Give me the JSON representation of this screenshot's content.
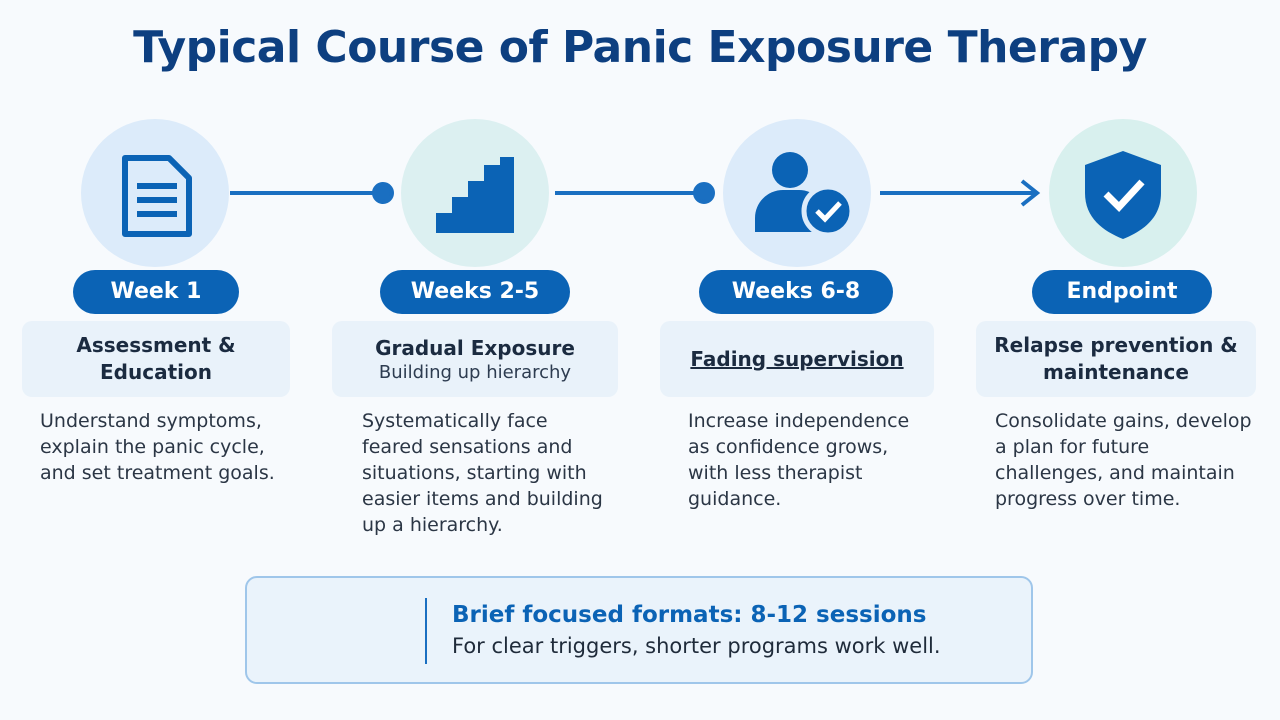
{
  "title": "Typical Course of Panic Exposure Therapy",
  "steps": [
    {
      "label": "Week 1",
      "heading": "Assessment & Education",
      "description": "Understand symptoms, explain the panic cycle, and set treatment goals."
    },
    {
      "label": "Weeks 2-5",
      "heading": "Gradual Exposure",
      "subheading": "Building up hierarchy",
      "description": "Systematically face feared sensations and situations, starting with easier items and building up a hierarchy."
    },
    {
      "label": "Weeks 6-8",
      "heading": "Fading supervision",
      "description": "Increase independence as confidence grows, with less therapist guidance."
    },
    {
      "label": "Endpoint",
      "heading": "Relapse prevention & maintenance",
      "description": "Consolidate gains, develop a plan for future challenges, and maintain progress over time."
    }
  ],
  "note": {
    "title": "Brief focused formats: 8-12 sessions",
    "text": "For clear triggers, shorter programs work well."
  }
}
